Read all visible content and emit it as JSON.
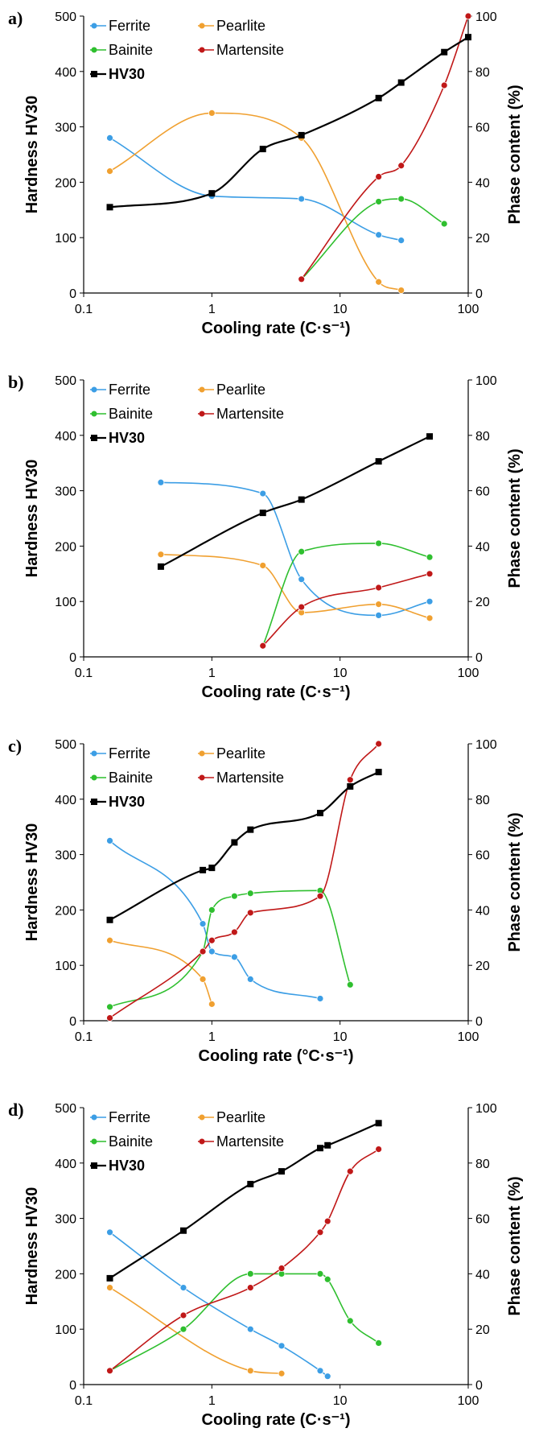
{
  "colors": {
    "ferrite": "#3c9ee5",
    "pearlite": "#f0a030",
    "bainite": "#2fbf2f",
    "martensite": "#c01818",
    "hv30": "#000000"
  },
  "chart_data": [
    {
      "type": "line",
      "panel_label": "a)",
      "xlabel": "Cooling rate (C·s⁻¹)",
      "ylabel": "Hardness HV30",
      "y2label": "Phase content (%)",
      "xscale": "log",
      "xlim": [
        0.1,
        100
      ],
      "ylim": [
        0,
        500
      ],
      "y2lim": [
        0,
        100
      ],
      "xticks": [
        0.1,
        1,
        10,
        100
      ],
      "xtick_labels": [
        "0.1",
        "1",
        "10",
        "100"
      ],
      "yticks": [
        0,
        100,
        200,
        300,
        400,
        500
      ],
      "ytick_labels": [
        "0",
        "100",
        "200",
        "300",
        "400",
        "500"
      ],
      "y2ticks": [
        0,
        20,
        40,
        60,
        80,
        100
      ],
      "y2tick_labels": [
        "0",
        "20",
        "40",
        "60",
        "80",
        "100"
      ],
      "legend_position": "top-left",
      "series": [
        {
          "name": "Ferrite",
          "key": "ferrite",
          "axis": "right",
          "marker": "circle",
          "x": [
            0.16,
            1,
            5,
            20,
            30
          ],
          "y": [
            56,
            35,
            34,
            21,
            19
          ]
        },
        {
          "name": "Pearlite",
          "key": "pearlite",
          "axis": "right",
          "marker": "circle",
          "x": [
            0.16,
            1,
            5,
            20,
            30
          ],
          "y": [
            44,
            65,
            56,
            4,
            1
          ]
        },
        {
          "name": "Bainite",
          "key": "bainite",
          "axis": "right",
          "marker": "circle",
          "x": [
            5,
            20,
            30,
            65
          ],
          "y": [
            5,
            33,
            34,
            25
          ]
        },
        {
          "name": "Martensite",
          "key": "martensite",
          "axis": "right",
          "marker": "circle",
          "x": [
            5,
            20,
            30,
            65,
            100
          ],
          "y": [
            5,
            42,
            46,
            75,
            100
          ]
        },
        {
          "name": "HV30",
          "key": "hv30",
          "axis": "left",
          "marker": "square",
          "x": [
            0.16,
            1,
            2.5,
            5,
            20,
            30,
            65,
            100
          ],
          "y": [
            155,
            180,
            260,
            285,
            352,
            380,
            435,
            462
          ]
        }
      ]
    },
    {
      "type": "line",
      "panel_label": "b)",
      "xlabel": "Cooling rate (C·s⁻¹)",
      "ylabel": "Hardness HV30",
      "y2label": "Phase content (%)",
      "xscale": "log",
      "xlim": [
        0.1,
        100
      ],
      "ylim": [
        0,
        500
      ],
      "y2lim": [
        0,
        100
      ],
      "xticks": [
        0.1,
        1,
        10,
        100
      ],
      "xtick_labels": [
        "0.1",
        "1",
        "10",
        "100"
      ],
      "yticks": [
        0,
        100,
        200,
        300,
        400,
        500
      ],
      "ytick_labels": [
        "0",
        "100",
        "200",
        "300",
        "400",
        "500"
      ],
      "y2ticks": [
        0,
        20,
        40,
        60,
        80,
        100
      ],
      "y2tick_labels": [
        "0",
        "20",
        "40",
        "60",
        "80",
        "100"
      ],
      "legend_position": "top-left",
      "series": [
        {
          "name": "Ferrite",
          "key": "ferrite",
          "axis": "right",
          "marker": "circle",
          "x": [
            0.4,
            2.5,
            5,
            20,
            50
          ],
          "y": [
            63,
            59,
            28,
            15,
            20
          ]
        },
        {
          "name": "Pearlite",
          "key": "pearlite",
          "axis": "right",
          "marker": "circle",
          "x": [
            0.4,
            2.5,
            5,
            20,
            50
          ],
          "y": [
            37,
            33,
            16,
            19,
            14
          ]
        },
        {
          "name": "Bainite",
          "key": "bainite",
          "axis": "right",
          "marker": "circle",
          "x": [
            2.5,
            5,
            20,
            50
          ],
          "y": [
            4,
            38,
            41,
            36
          ]
        },
        {
          "name": "Martensite",
          "key": "martensite",
          "axis": "right",
          "marker": "circle",
          "x": [
            2.5,
            5,
            20,
            50
          ],
          "y": [
            4,
            18,
            25,
            30
          ]
        },
        {
          "name": "HV30",
          "key": "hv30",
          "axis": "left",
          "marker": "square",
          "x": [
            0.4,
            2.5,
            5,
            20,
            50
          ],
          "y": [
            163,
            260,
            284,
            353,
            398
          ]
        }
      ]
    },
    {
      "type": "line",
      "panel_label": "c)",
      "xlabel": "Cooling rate (°C·s⁻¹)",
      "ylabel": "Hardness HV30",
      "y2label": "Phase content (%)",
      "xscale": "log",
      "xlim": [
        0.1,
        100
      ],
      "ylim": [
        0,
        500
      ],
      "y2lim": [
        0,
        100
      ],
      "xticks": [
        0.1,
        1,
        10,
        100
      ],
      "xtick_labels": [
        "0.1",
        "1",
        "10",
        "100"
      ],
      "yticks": [
        0,
        100,
        200,
        300,
        400,
        500
      ],
      "ytick_labels": [
        "0",
        "100",
        "200",
        "300",
        "400",
        "500"
      ],
      "y2ticks": [
        0,
        20,
        40,
        60,
        80,
        100
      ],
      "y2tick_labels": [
        "0",
        "20",
        "40",
        "60",
        "80",
        "100"
      ],
      "legend_position": "top-left",
      "series": [
        {
          "name": "Ferrite",
          "key": "ferrite",
          "axis": "right",
          "marker": "circle",
          "x": [
            0.16,
            0.85,
            1,
            1.5,
            2,
            7
          ],
          "y": [
            65,
            35,
            25,
            23,
            15,
            8
          ]
        },
        {
          "name": "Pearlite",
          "key": "pearlite",
          "axis": "right",
          "marker": "circle",
          "x": [
            0.16,
            0.85,
            1
          ],
          "y": [
            29,
            15,
            6
          ]
        },
        {
          "name": "Bainite",
          "key": "bainite",
          "axis": "right",
          "marker": "circle",
          "x": [
            0.16,
            0.85,
            1,
            1.5,
            2,
            7,
            12
          ],
          "y": [
            5,
            25,
            40,
            45,
            46,
            47,
            13
          ]
        },
        {
          "name": "Martensite",
          "key": "martensite",
          "axis": "right",
          "marker": "circle",
          "x": [
            0.16,
            0.85,
            1,
            1.5,
            2,
            7,
            12,
            20
          ],
          "y": [
            1,
            25,
            29,
            32,
            39,
            45,
            87,
            100
          ]
        },
        {
          "name": "HV30",
          "key": "hv30",
          "axis": "left",
          "marker": "square",
          "x": [
            0.16,
            0.85,
            1,
            1.5,
            2,
            7,
            12,
            20
          ],
          "y": [
            182,
            272,
            276,
            322,
            345,
            375,
            423,
            449
          ]
        }
      ]
    },
    {
      "type": "line",
      "panel_label": "d)",
      "xlabel": "Cooling rate (C·s⁻¹)",
      "ylabel": "Hardness HV30",
      "y2label": "Phase content (%)",
      "xscale": "log",
      "xlim": [
        0.1,
        100
      ],
      "ylim": [
        0,
        500
      ],
      "y2lim": [
        0,
        100
      ],
      "xticks": [
        0.1,
        1,
        10,
        100
      ],
      "xtick_labels": [
        "0.1",
        "1",
        "10",
        "100"
      ],
      "yticks": [
        0,
        100,
        200,
        300,
        400,
        500
      ],
      "ytick_labels": [
        "0",
        "100",
        "200",
        "300",
        "400",
        "500"
      ],
      "y2ticks": [
        0,
        20,
        40,
        60,
        80,
        100
      ],
      "y2tick_labels": [
        "0",
        "20",
        "40",
        "60",
        "80",
        "100"
      ],
      "legend_position": "top-left",
      "series": [
        {
          "name": "Ferrite",
          "key": "ferrite",
          "axis": "right",
          "marker": "circle",
          "x": [
            0.16,
            0.6,
            2,
            3.5,
            7,
            8
          ],
          "y": [
            55,
            35,
            20,
            14,
            5,
            3
          ]
        },
        {
          "name": "Pearlite",
          "key": "pearlite",
          "axis": "right",
          "marker": "circle",
          "x": [
            0.16,
            2,
            3.5
          ],
          "y": [
            35,
            5,
            4
          ]
        },
        {
          "name": "Bainite",
          "key": "bainite",
          "axis": "right",
          "marker": "circle",
          "x": [
            0.16,
            0.6,
            2,
            3.5,
            7,
            8,
            12,
            20
          ],
          "y": [
            5,
            20,
            40,
            40,
            40,
            38,
            23,
            15
          ]
        },
        {
          "name": "Martensite",
          "key": "martensite",
          "axis": "right",
          "marker": "circle",
          "x": [
            0.16,
            0.6,
            2,
            3.5,
            7,
            8,
            12,
            20
          ],
          "y": [
            5,
            25,
            35,
            42,
            55,
            59,
            77,
            85
          ]
        },
        {
          "name": "HV30",
          "key": "hv30",
          "axis": "left",
          "marker": "square",
          "x": [
            0.16,
            0.6,
            2,
            3.5,
            7,
            8,
            20
          ],
          "y": [
            192,
            278,
            362,
            385,
            427,
            432,
            472
          ]
        }
      ]
    }
  ]
}
